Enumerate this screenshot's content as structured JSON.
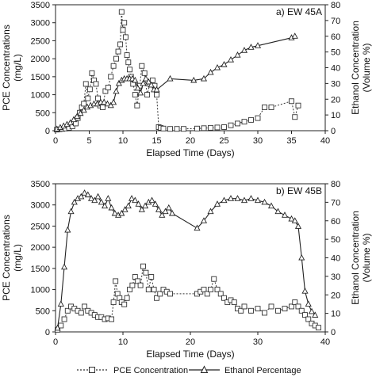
{
  "chart_data": [
    {
      "type": "line",
      "panel_label": "a) EW 45A",
      "xlabel": "Elapsed Time (Days)",
      "ylabel_left": [
        "PCE Concentrations",
        "(mg/L)"
      ],
      "ylabel_right": [
        "Ethanol Concentration",
        "(Volume %)"
      ],
      "xlim": [
        0,
        40
      ],
      "ylim_left": [
        0,
        3500
      ],
      "ylim_right": [
        0,
        80
      ],
      "x_ticks": [
        0,
        5,
        10,
        15,
        20,
        25,
        30,
        35,
        40
      ],
      "y_left_ticks": [
        0,
        500,
        1000,
        1500,
        2000,
        2500,
        3000,
        3500
      ],
      "y_right_ticks": [
        0,
        10,
        20,
        30,
        40,
        50,
        60,
        70,
        80
      ],
      "series": [
        {
          "name": "PCE Concentration",
          "axis": "left",
          "marker": "square",
          "line": "dotted",
          "x": [
            0.2,
            0.6,
            1.0,
            1.5,
            2.0,
            2.5,
            3.0,
            3.3,
            3.6,
            3.9,
            4.2,
            4.5,
            4.8,
            5.1,
            5.4,
            5.7,
            6.0,
            6.3,
            6.6,
            7.0,
            7.4,
            7.8,
            8.2,
            8.6,
            9.0,
            9.3,
            9.6,
            9.8,
            10.0,
            10.2,
            10.4,
            10.6,
            10.8,
            11.0,
            11.2,
            11.5,
            11.8,
            12.1,
            12.5,
            12.8,
            13.2,
            13.6,
            14.0,
            14.4,
            14.7,
            15.0,
            15.3,
            15.6,
            16.0,
            17.0,
            18.0,
            19.0,
            21.0,
            22.0,
            23.0,
            24.0,
            25.0,
            26.0,
            27.0,
            28.0,
            29.0,
            30.0,
            31.0,
            32.0,
            35.0,
            35.5,
            36.0
          ],
          "y": [
            30,
            40,
            50,
            60,
            80,
            120,
            200,
            350,
            500,
            650,
            750,
            1300,
            900,
            1150,
            1600,
            1400,
            1300,
            900,
            700,
            650,
            1100,
            1200,
            1500,
            1800,
            2000,
            2200,
            2400,
            3300,
            2800,
            3000,
            2600,
            2100,
            1900,
            1700,
            1500,
            1300,
            1000,
            700,
            1250,
            1800,
            1600,
            1000,
            1300,
            1400,
            1250,
            1000,
            100,
            80,
            60,
            50,
            50,
            50,
            60,
            70,
            80,
            90,
            100,
            150,
            200,
            250,
            300,
            350,
            650,
            650,
            820,
            380,
            700
          ]
        },
        {
          "name": "Ethanol Percentage",
          "axis": "right",
          "marker": "triangle",
          "line": "solid",
          "x": [
            0.2,
            0.7,
            1.2,
            1.7,
            2.2,
            2.7,
            3.2,
            3.7,
            4.2,
            4.7,
            5.2,
            5.7,
            6.2,
            6.7,
            7.2,
            7.7,
            8.2,
            8.6,
            9.0,
            9.4,
            9.8,
            10.2,
            10.6,
            11.0,
            11.4,
            11.8,
            12.2,
            12.6,
            13.0,
            13.4,
            13.8,
            14.2,
            14.6,
            15.0,
            17.0,
            20.5,
            22.0,
            23.0,
            24.0,
            25.0,
            26.0,
            27.0,
            28.0,
            29.0,
            30.0,
            35.0,
            35.5
          ],
          "y": [
            1,
            2,
            3,
            4,
            5,
            7,
            9,
            11,
            13,
            15,
            16,
            17,
            17,
            18,
            18,
            17,
            16,
            18,
            25,
            30,
            32,
            33,
            33,
            33,
            33,
            32,
            27,
            24,
            30,
            33,
            31,
            29,
            26,
            26,
            33,
            32,
            33,
            37,
            40,
            42,
            45,
            48,
            51,
            53,
            54,
            59,
            60
          ]
        }
      ]
    },
    {
      "type": "line",
      "panel_label": "b) EW 45B",
      "xlabel": "Elapsed Time (Days)",
      "ylabel_left": [
        "PCE Concentrations",
        "(mg/L)"
      ],
      "ylabel_right": [
        "Ethanol Concentration",
        "(Volume %)"
      ],
      "xlim": [
        0,
        40
      ],
      "ylim_left": [
        0,
        3500
      ],
      "ylim_right": [
        0,
        80
      ],
      "x_ticks": [
        0,
        10,
        20,
        30,
        40
      ],
      "y_left_ticks": [
        0,
        500,
        1000,
        1500,
        2000,
        2500,
        3000,
        3500
      ],
      "y_right_ticks": [
        0,
        10,
        20,
        30,
        40,
        50,
        60,
        70,
        80
      ],
      "series": [
        {
          "name": "PCE Concentration",
          "axis": "left",
          "marker": "square",
          "line": "dotted",
          "x": [
            0.3,
            0.8,
            1.3,
            1.8,
            2.3,
            2.8,
            3.3,
            3.8,
            4.3,
            4.8,
            5.3,
            5.8,
            6.3,
            6.8,
            7.3,
            7.8,
            8.3,
            8.6,
            8.9,
            9.2,
            9.5,
            9.8,
            10.2,
            10.6,
            11.0,
            11.4,
            11.8,
            12.2,
            12.6,
            13.0,
            13.4,
            13.8,
            14.2,
            14.6,
            15.0,
            15.5,
            16.0,
            16.5,
            17.0,
            21.0,
            21.5,
            22.0,
            22.5,
            23.0,
            23.5,
            24.0,
            24.5,
            25.0,
            25.5,
            26.0,
            26.5,
            27.0,
            27.5,
            28.0,
            29.0,
            30.0,
            31.0,
            32.0,
            33.0,
            34.0,
            35.0,
            35.5,
            36.0,
            36.5,
            37.0,
            37.5,
            38.0,
            38.5,
            39.0
          ],
          "y": [
            50,
            150,
            300,
            500,
            600,
            550,
            500,
            450,
            600,
            500,
            450,
            400,
            350,
            350,
            300,
            320,
            300,
            700,
            1200,
            900,
            800,
            700,
            650,
            800,
            1000,
            1100,
            1300,
            1200,
            1100,
            1550,
            1400,
            1000,
            1300,
            1000,
            800,
            900,
            1000,
            950,
            900,
            900,
            950,
            1000,
            900,
            1000,
            1250,
            1000,
            900,
            800,
            700,
            750,
            700,
            550,
            500,
            600,
            500,
            550,
            450,
            600,
            500,
            550,
            600,
            700,
            600,
            500,
            400,
            300,
            200,
            150,
            100
          ]
        },
        {
          "name": "Ethanol Percentage",
          "axis": "right",
          "marker": "triangle",
          "line": "solid",
          "x": [
            0.3,
            0.8,
            1.3,
            1.8,
            2.3,
            2.8,
            3.3,
            3.8,
            4.3,
            4.8,
            5.3,
            5.8,
            6.3,
            6.8,
            7.3,
            7.8,
            8.3,
            8.8,
            9.3,
            9.8,
            10.3,
            10.8,
            11.3,
            11.8,
            12.3,
            12.8,
            13.3,
            13.8,
            14.3,
            14.8,
            15.3,
            15.8,
            16.3,
            16.8,
            17.3,
            21.0,
            22.0,
            23.0,
            24.0,
            25.0,
            26.0,
            27.0,
            28.0,
            29.0,
            30.0,
            31.0,
            32.0,
            33.0,
            34.0,
            35.0,
            35.5,
            36.0,
            36.5,
            37.0,
            37.5,
            38.0,
            38.5
          ],
          "y": [
            2,
            15,
            35,
            55,
            65,
            70,
            72,
            73,
            75,
            74,
            72,
            71,
            73,
            70,
            68,
            72,
            67,
            64,
            63,
            64,
            66,
            68,
            72,
            71,
            69,
            66,
            68,
            70,
            71,
            69,
            66,
            63,
            65,
            67,
            64,
            56,
            60,
            65,
            69,
            71,
            72,
            72,
            71,
            72,
            71,
            70,
            68,
            65,
            63,
            61,
            60,
            57,
            40,
            22,
            15,
            11,
            9
          ]
        }
      ]
    }
  ],
  "legend": {
    "pce_label": "PCE Concentration",
    "ethanol_label": "Ethanol Percentage"
  }
}
